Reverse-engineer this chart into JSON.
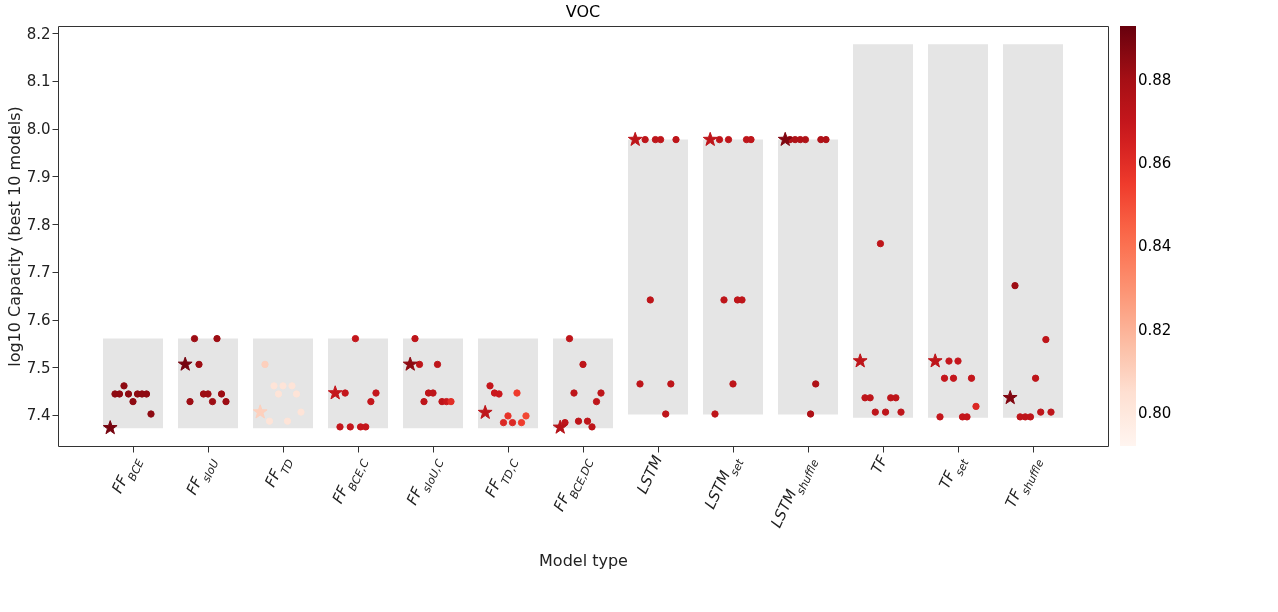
{
  "chart_data": {
    "type": "scatter",
    "title": "VOC",
    "xlabel": "Model type",
    "ylabel": "log10 Capacity (best 10 models)",
    "categories": [
      "FF$_{BCE}$",
      "FF$_{sIoU}$",
      "FF$_{TD}$",
      "FF$_{BCE,C}$",
      "FF$_{sIoU,C}$",
      "FF$_{TD,C}$",
      "FF$_{BCE,DC}$",
      "LSTM",
      "LSTM$_{set}$",
      "LSTM$_{shuffle}$",
      "TF",
      "TF$_{set}$",
      "TF$_{shuffle}$"
    ],
    "ylim": [
      7.335,
      8.215
    ],
    "yticks": [
      7.4,
      7.5,
      7.6,
      7.7,
      7.8,
      7.9,
      {
        "value": 8.0,
        "label": "8.0"
      },
      8.1,
      8.2
    ],
    "clim": [
      0.792,
      0.893
    ],
    "cticks": [
      {
        "value": 0.8,
        "label": "0.80"
      },
      0.82,
      0.84,
      0.86,
      0.88
    ],
    "grid": false,
    "series": [
      {
        "type": "bar",
        "color": "#e5e5e5",
        "base": [
          7.372,
          7.372,
          7.372,
          7.372,
          7.372,
          7.372,
          7.372,
          7.401,
          7.401,
          7.401,
          7.394,
          7.394,
          7.394
        ],
        "values": [
          0.188,
          0.188,
          0.188,
          0.188,
          0.188,
          0.188,
          0.188,
          0.576,
          0.576,
          0.576,
          0.783,
          0.783,
          0.783
        ]
      },
      {
        "marker": "circle",
        "x": [
          "FF$_{BCE}$",
          "FF$_{BCE}$",
          "FF$_{BCE}$",
          "FF$_{BCE}$",
          "FF$_{BCE}$",
          "FF$_{BCE}$",
          "FF$_{BCE}$",
          "FF$_{BCE}$",
          "FF$_{BCE}$",
          "FF$_{sIoU}$",
          "FF$_{sIoU}$",
          "FF$_{sIoU}$",
          "FF$_{sIoU}$",
          "FF$_{sIoU}$",
          "FF$_{sIoU}$",
          "FF$_{sIoU}$",
          "FF$_{sIoU}$",
          "FF$_{sIoU}$",
          "FF$_{TD}$",
          "FF$_{TD}$",
          "FF$_{TD}$",
          "FF$_{TD}$",
          "FF$_{TD}$",
          "FF$_{TD}$",
          "FF$_{TD}$",
          "FF$_{TD}$",
          "FF$_{TD}$",
          "FF$_{BCE,C}$",
          "FF$_{BCE,C}$",
          "FF$_{BCE,C}$",
          "FF$_{BCE,C}$",
          "FF$_{BCE,C}$",
          "FF$_{BCE,C}$",
          "FF$_{BCE,C}$",
          "FF$_{BCE,C}$",
          "FF$_{sIoU,C}$",
          "FF$_{sIoU,C}$",
          "FF$_{sIoU,C}$",
          "FF$_{sIoU,C}$",
          "FF$_{sIoU,C}$",
          "FF$_{sIoU,C}$",
          "FF$_{sIoU,C}$",
          "FF$_{sIoU,C}$",
          "FF$_{sIoU,C}$",
          "FF$_{TD,C}$",
          "FF$_{TD,C}$",
          "FF$_{TD,C}$",
          "FF$_{TD,C}$",
          "FF$_{TD,C}$",
          "FF$_{TD,C}$",
          "FF$_{TD,C}$",
          "FF$_{TD,C}$",
          "FF$_{TD,C}$",
          "FF$_{BCE,DC}$",
          "FF$_{BCE,DC}$",
          "FF$_{BCE,DC}$",
          "FF$_{BCE,DC}$",
          "FF$_{BCE,DC}$",
          "FF$_{BCE,DC}$",
          "FF$_{BCE,DC}$",
          "FF$_{BCE,DC}$",
          "FF$_{BCE,DC}$",
          "LSTM",
          "LSTM",
          "LSTM",
          "LSTM",
          "LSTM",
          "LSTM",
          "LSTM",
          "LSTM",
          "LSTM$_{set}$",
          "LSTM$_{set}$",
          "LSTM$_{set}$",
          "LSTM$_{set}$",
          "LSTM$_{set}$",
          "LSTM$_{set}$",
          "LSTM$_{set}$",
          "LSTM$_{set}$",
          "LSTM$_{set}$",
          "LSTM$_{shuffle}$",
          "LSTM$_{shuffle}$",
          "LSTM$_{shuffle}$",
          "LSTM$_{shuffle}$",
          "LSTM$_{shuffle}$",
          "LSTM$_{shuffle}$",
          "LSTM$_{shuffle}$",
          "LSTM$_{shuffle}$",
          "TF",
          "TF",
          "TF",
          "TF",
          "TF",
          "TF",
          "TF",
          "TF",
          "TF$_{set}$",
          "TF$_{set}$",
          "TF$_{set}$",
          "TF$_{set}$",
          "TF$_{set}$",
          "TF$_{set}$",
          "TF$_{set}$",
          "TF$_{set}$",
          "TF$_{set}$",
          "TF$_{shuffle}$",
          "TF$_{shuffle}$",
          "TF$_{shuffle}$",
          "TF$_{shuffle}$",
          "TF$_{shuffle}$",
          "TF$_{shuffle}$",
          "TF$_{shuffle}$",
          "TF$_{shuffle}$"
        ],
        "values": [
          7.444,
          7.444,
          7.461,
          7.444,
          7.428,
          7.444,
          7.444,
          7.444,
          7.402,
          7.428,
          7.56,
          7.506,
          7.444,
          7.444,
          7.428,
          7.56,
          7.444,
          7.428,
          7.506,
          7.387,
          7.461,
          7.444,
          7.461,
          7.387,
          7.461,
          7.444,
          7.406,
          7.375,
          7.446,
          7.375,
          7.56,
          7.375,
          7.375,
          7.428,
          7.446,
          7.56,
          7.506,
          7.428,
          7.446,
          7.446,
          7.506,
          7.428,
          7.428,
          7.428,
          7.461,
          7.446,
          7.444,
          7.384,
          7.398,
          7.384,
          7.446,
          7.384,
          7.398,
          7.384,
          7.56,
          7.446,
          7.387,
          7.506,
          7.387,
          7.375,
          7.428,
          7.446,
          7.465,
          7.977,
          7.641,
          7.977,
          7.977,
          7.402,
          7.465,
          7.977,
          7.402,
          7.977,
          7.641,
          7.977,
          7.465,
          7.641,
          7.641,
          7.977,
          7.977,
          7.977,
          7.977,
          7.977,
          7.977,
          7.402,
          7.465,
          7.977,
          7.977,
          7.436,
          7.436,
          7.406,
          7.759,
          7.406,
          7.436,
          7.436,
          7.406,
          7.396,
          7.477,
          7.513,
          7.477,
          7.513,
          7.396,
          7.396,
          7.477,
          7.418,
          7.671,
          7.396,
          7.396,
          7.396,
          7.477,
          7.406,
          7.558,
          7.406
        ],
        "cvalues": [
          0.885,
          0.885,
          0.885,
          0.885,
          0.885,
          0.885,
          0.885,
          0.885,
          0.885,
          0.882,
          0.882,
          0.882,
          0.882,
          0.882,
          0.882,
          0.882,
          0.882,
          0.882,
          0.81,
          0.802,
          0.802,
          0.802,
          0.802,
          0.802,
          0.802,
          0.802,
          0.802,
          0.87,
          0.87,
          0.87,
          0.87,
          0.87,
          0.87,
          0.87,
          0.87,
          0.872,
          0.872,
          0.872,
          0.872,
          0.872,
          0.872,
          0.872,
          0.868,
          0.86,
          0.87,
          0.868,
          0.868,
          0.862,
          0.858,
          0.862,
          0.855,
          0.855,
          0.852,
          0.872,
          0.872,
          0.872,
          0.872,
          0.872,
          0.872,
          0.872,
          0.872,
          0.872,
          0.872,
          0.872,
          0.872,
          0.872,
          0.872,
          0.872,
          0.872,
          0.872,
          0.872,
          0.872,
          0.872,
          0.872,
          0.872,
          0.872,
          0.872,
          0.872,
          0.872,
          0.877,
          0.877,
          0.877,
          0.877,
          0.877,
          0.877,
          0.877,
          0.877,
          0.872,
          0.872,
          0.872,
          0.872,
          0.872,
          0.872,
          0.872,
          0.872,
          0.87,
          0.87,
          0.87,
          0.87,
          0.87,
          0.87,
          0.87,
          0.87,
          0.862,
          0.882,
          0.872,
          0.872,
          0.872,
          0.872,
          0.872,
          0.872,
          0.872
        ],
        "colors": [
          "#8e0a12",
          "#8e0a12",
          "#8e0a12",
          "#8e0a12",
          "#8e0a12",
          "#8e0a12",
          "#8e0a12",
          "#8e0a12",
          "#8e0a12",
          "#9d0d14",
          "#9d0d14",
          "#9d0d14",
          "#9d0d14",
          "#9d0d14",
          "#9d0d14",
          "#9d0d14",
          "#9d0d14",
          "#9d0d14",
          "#fdd0bd",
          "#fee4d8",
          "#fee4d8",
          "#fee4d8",
          "#fee4d8",
          "#fee4d8",
          "#fee4d8",
          "#fee4d8",
          "#fee4d8",
          "#c4161c",
          "#c4161c",
          "#c4161c",
          "#c4161c",
          "#c4161c",
          "#c4161c",
          "#c4161c",
          "#c4161c",
          "#be151a",
          "#be151a",
          "#be151a",
          "#be151a",
          "#be151a",
          "#be151a",
          "#be151a",
          "#ca181d",
          "#e12d26",
          "#c4161c",
          "#ca181d",
          "#ca181d",
          "#db2824",
          "#e73329",
          "#db2824",
          "#ef3b2c",
          "#ef3b2c",
          "#f24733",
          "#be151a",
          "#be151a",
          "#be151a",
          "#be151a",
          "#be151a",
          "#be151a",
          "#be151a",
          "#be151a",
          "#be151a",
          "#be151a",
          "#be151a",
          "#be151a",
          "#be151a",
          "#be151a",
          "#be151a",
          "#be151a",
          "#be151a",
          "#be151a",
          "#be151a",
          "#be151a",
          "#be151a",
          "#be151a",
          "#be151a",
          "#be151a",
          "#be151a",
          "#be151a",
          "#af1117",
          "#af1117",
          "#af1117",
          "#af1117",
          "#af1117",
          "#af1117",
          "#af1117",
          "#af1117",
          "#be151a",
          "#be151a",
          "#be151a",
          "#be151a",
          "#be151a",
          "#be151a",
          "#be151a",
          "#be151a",
          "#c4161c",
          "#c4161c",
          "#c4161c",
          "#c4161c",
          "#c4161c",
          "#c4161c",
          "#c4161c",
          "#c4161c",
          "#db2824",
          "#9d0d14",
          "#be151a",
          "#be151a",
          "#be151a",
          "#be151a",
          "#be151a",
          "#be151a",
          "#be151a"
        ]
      },
      {
        "marker": "star",
        "x": [
          "FF$_{BCE}$",
          "FF$_{sIoU}$",
          "FF$_{TD}$",
          "FF$_{BCE,C}$",
          "FF$_{sIoU,C}$",
          "FF$_{TD,C}$",
          "FF$_{BCE,DC}$",
          "LSTM",
          "LSTM$_{set}$",
          "LSTM$_{shuffle}$",
          "TF",
          "TF$_{set}$",
          "TF$_{shuffle}$"
        ],
        "values": [
          7.373,
          7.506,
          7.406,
          7.446,
          7.506,
          7.405,
          7.374,
          7.977,
          7.977,
          7.977,
          7.513,
          7.513,
          7.436
        ],
        "cvalues": [
          0.89,
          0.89,
          0.81,
          0.87,
          0.885,
          0.872,
          0.875,
          0.872,
          0.872,
          0.888,
          0.872,
          0.872,
          0.888
        ],
        "colors": [
          "#76040f",
          "#76040f",
          "#fdd0bd",
          "#c4161c",
          "#8e0a12",
          "#be151a",
          "#b51318",
          "#be151a",
          "#be151a",
          "#800610",
          "#be151a",
          "#be151a",
          "#800610"
        ]
      }
    ]
  }
}
